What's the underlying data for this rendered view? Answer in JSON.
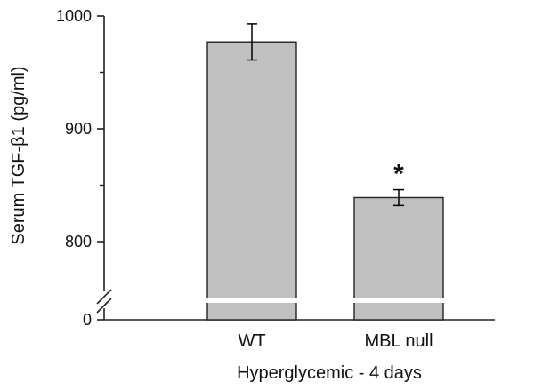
{
  "chart_data": {
    "type": "bar",
    "categories": [
      "WT",
      "MBL null"
    ],
    "values": [
      977,
      839
    ],
    "error": [
      16,
      7
    ],
    "annotations": [
      "",
      "*"
    ],
    "title": "",
    "xlabel": "Hyperglycemic - 4 days",
    "ylabel": "Serum TGF-β1 (pg/ml)",
    "yticks": [
      800,
      900,
      1000
    ],
    "ylim": [
      700,
      1000
    ],
    "axis_break": true,
    "baseline_label": "0",
    "bar_color": "#c0c0c0",
    "edge_color": "#222222",
    "grid": false
  }
}
